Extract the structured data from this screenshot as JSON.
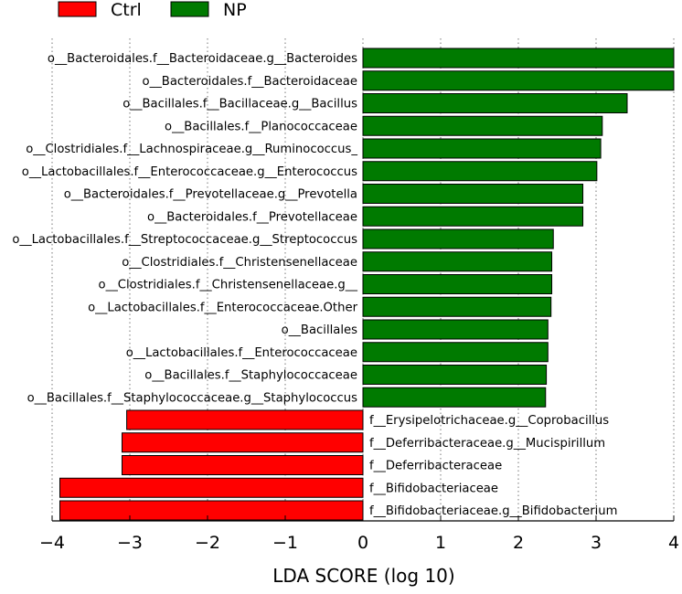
{
  "colors": {
    "ctrl": "#ff0000",
    "np": "#007a00",
    "grid": "#777777",
    "bar_edge": "#000000"
  },
  "chart_data": {
    "type": "bar",
    "orientation": "horizontal",
    "title": "",
    "xlabel": "LDA SCORE (log 10)",
    "ylabel": "",
    "xlim": [
      -4,
      4
    ],
    "xticks": [
      -4,
      -3,
      -2,
      -1,
      0,
      1,
      2,
      3,
      4
    ],
    "xtick_labels": [
      "−4",
      "−3",
      "−2",
      "−1",
      "0",
      "1",
      "2",
      "3",
      "4"
    ],
    "grid": "vertical dotted",
    "legend_placement": "top-left",
    "series": [
      {
        "name": "Ctrl",
        "color": "#ff0000"
      },
      {
        "name": "NP",
        "color": "#007a00"
      }
    ],
    "bars": [
      {
        "label": "o__Bacteroidales.f__Bacteroidaceae.g__Bacteroides",
        "value": 4.0,
        "group": "NP"
      },
      {
        "label": "o__Bacteroidales.f__Bacteroidaceae",
        "value": 4.0,
        "group": "NP"
      },
      {
        "label": "o__Bacillales.f__Bacillaceae.g__Bacillus",
        "value": 3.4,
        "group": "NP"
      },
      {
        "label": "o__Bacillales.f__Planococcaceae",
        "value": 3.08,
        "group": "NP"
      },
      {
        "label": "o__Clostridiales.f__Lachnospiraceae.g__Ruminococcus_",
        "value": 3.06,
        "group": "NP"
      },
      {
        "label": "o__Lactobacillales.f__Enterococcaceae.g__Enterococcus",
        "value": 3.01,
        "group": "NP"
      },
      {
        "label": "o__Bacteroidales.f__Prevotellaceae.g__Prevotella",
        "value": 2.83,
        "group": "NP"
      },
      {
        "label": "o__Bacteroidales.f__Prevotellaceae",
        "value": 2.83,
        "group": "NP"
      },
      {
        "label": "o__Lactobacillales.f__Streptococcaceae.g__Streptococcus",
        "value": 2.45,
        "group": "NP"
      },
      {
        "label": "o__Clostridiales.f__Christensenellaceae",
        "value": 2.43,
        "group": "NP"
      },
      {
        "label": "o__Clostridiales.f__Christensenellaceae.g__",
        "value": 2.43,
        "group": "NP"
      },
      {
        "label": "o__Lactobacillales.f__Enterococcaceae.Other",
        "value": 2.42,
        "group": "NP"
      },
      {
        "label": "o__Bacillales",
        "value": 2.38,
        "group": "NP"
      },
      {
        "label": "o__Lactobacillales.f__Enterococcaceae",
        "value": 2.38,
        "group": "NP"
      },
      {
        "label": "o__Bacillales.f__Staphylococcaceae",
        "value": 2.36,
        "group": "NP"
      },
      {
        "label": "o__Bacillales.f__Staphylococcaceae.g__Staphylococcus",
        "value": 2.35,
        "group": "NP"
      },
      {
        "label": "f__Erysipelotrichaceae.g__Coprobacillus",
        "value": -3.04,
        "group": "Ctrl"
      },
      {
        "label": "f__Deferribacteraceae.g__Mucispirillum",
        "value": -3.1,
        "group": "Ctrl"
      },
      {
        "label": "f__Deferribacteraceae",
        "value": -3.1,
        "group": "Ctrl"
      },
      {
        "label": "f__Bifidobacteriaceae",
        "value": -3.9,
        "group": "Ctrl"
      },
      {
        "label": "f__Bifidobacteriaceae.g__Bifidobacterium",
        "value": -3.9,
        "group": "Ctrl"
      }
    ]
  }
}
